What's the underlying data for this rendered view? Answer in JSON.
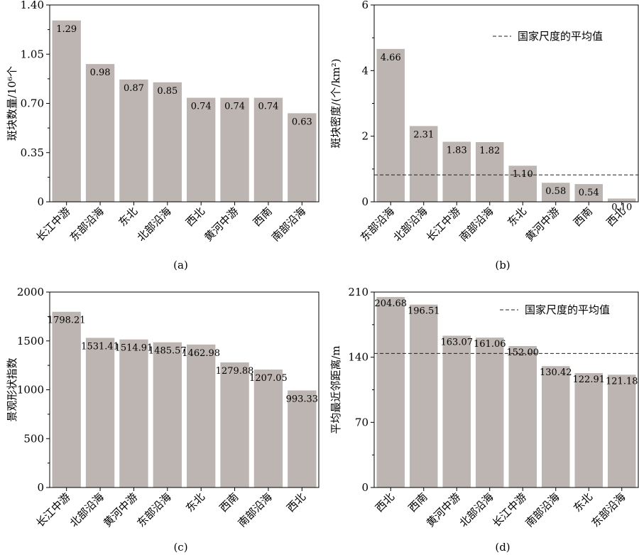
{
  "legend_label": "国家尺度的平均值",
  "chart_data": [
    {
      "type": "bar",
      "panel_label": "(a)",
      "ylabel": "斑块数量/10⁶个",
      "ylim": [
        0,
        1.4
      ],
      "yticks": [
        "0",
        "0.35",
        "0.70",
        "1.05",
        "1.40"
      ],
      "ytick_values": [
        0,
        0.35,
        0.7,
        1.05,
        1.4
      ],
      "categories": [
        "长江中游",
        "东部沿海",
        "东北",
        "北部沿海",
        "西北",
        "黄河中游",
        "西南",
        "南部沿海"
      ],
      "values": [
        1.29,
        0.98,
        0.87,
        0.85,
        0.74,
        0.74,
        0.74,
        0.63
      ],
      "value_labels": [
        "1.29",
        "0.98",
        "0.87",
        "0.85",
        "0.74",
        "0.74",
        "0.74",
        "0.63"
      ],
      "national_average": null,
      "bar_color": "#bcb5b2"
    },
    {
      "type": "bar",
      "panel_label": "(b)",
      "ylabel": "斑块密度/(个/km²)",
      "ylim": [
        0,
        6
      ],
      "yticks": [
        "0",
        "2",
        "4",
        "6"
      ],
      "ytick_values": [
        0,
        2,
        4,
        6
      ],
      "categories": [
        "东部沿海",
        "北部沿海",
        "长江中游",
        "南部沿海",
        "东北",
        "黄河中游",
        "西南",
        "西北"
      ],
      "values": [
        4.66,
        2.31,
        1.83,
        1.82,
        1.1,
        0.58,
        0.54,
        0.1
      ],
      "value_labels": [
        "4.66",
        "2.31",
        "1.83",
        "1.82",
        "1.10",
        "0.58",
        "0.54",
        "0.10"
      ],
      "national_average": 0.82,
      "legend": "top-right",
      "bar_color": "#bcb5b2"
    },
    {
      "type": "bar",
      "panel_label": "(c)",
      "ylabel": "景观形状指数",
      "ylim": [
        0,
        2000
      ],
      "yticks": [
        "0",
        "500",
        "1000",
        "1500",
        "2000"
      ],
      "ytick_values": [
        0,
        500,
        1000,
        1500,
        2000
      ],
      "categories": [
        "长江中游",
        "北部沿海",
        "黄河中游",
        "东部沿海",
        "东北",
        "西南",
        "南部沿海",
        "西北"
      ],
      "values": [
        1798.21,
        1531.41,
        1514.91,
        1485.57,
        1462.98,
        1279.88,
        1207.05,
        993.33
      ],
      "value_labels": [
        "1798.21",
        "1531.41",
        "1514.91",
        "1485.57",
        "1462.98",
        "1279.88",
        "1207.05",
        "993.33"
      ],
      "national_average": null,
      "bar_color": "#bcb5b2"
    },
    {
      "type": "bar",
      "panel_label": "(d)",
      "ylabel": "平均最近邻距离/m",
      "ylim": [
        0,
        210
      ],
      "yticks": [
        "0",
        "70",
        "140",
        "210"
      ],
      "ytick_values": [
        0,
        70,
        140,
        210
      ],
      "categories": [
        "西北",
        "西南",
        "黄河中游",
        "北部沿海",
        "长江中游",
        "南部沿海",
        "东北",
        "东部沿海"
      ],
      "values": [
        204.68,
        196.51,
        163.07,
        161.06,
        152.0,
        130.42,
        122.91,
        121.18
      ],
      "value_labels": [
        "204.68",
        "196.51",
        "163.07",
        "161.06",
        "152.00",
        "130.42",
        "122.91",
        "121.18"
      ],
      "national_average": 144,
      "legend": "top-right",
      "bar_color": "#bcb5b2"
    }
  ]
}
